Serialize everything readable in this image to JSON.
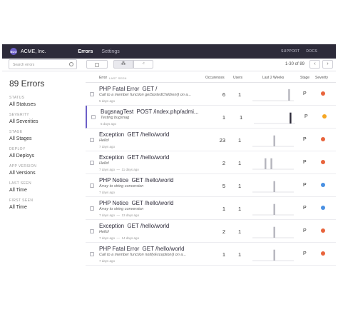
{
  "app": {
    "org_name": "ACME, Inc.",
    "logo_text": "BUG",
    "nav_tabs": [
      "Errors",
      "Settings"
    ],
    "top_links": [
      "SUPPORT",
      "DOCS"
    ]
  },
  "toolbar": {
    "search_placeholder": "Search errors",
    "group_icon_1": "⁂",
    "group_icon_2": "⁖",
    "page_range": "1-30 of 89",
    "prev_label": "‹",
    "next_label": "›"
  },
  "sidebar": {
    "title": "89 Errors",
    "filters": [
      {
        "label": "STATUS",
        "value": "All Statuses"
      },
      {
        "label": "SEVERITY",
        "value": "All Severities"
      },
      {
        "label": "STAGE",
        "value": "All Stages"
      },
      {
        "label": "DEPLOY",
        "value": "All Deploys"
      },
      {
        "label": "APP VERSION",
        "value": "All Versions"
      },
      {
        "label": "LAST SEEN",
        "value": "All Time"
      },
      {
        "label": "FIRST SEEN",
        "value": "All Time"
      }
    ]
  },
  "columns": {
    "error": "Error",
    "sort": "LAST SEEN",
    "occurrences": "Occurences",
    "users": "Users",
    "trend": "Last 2 Weeks",
    "stage": "Stage",
    "severity": "Severity"
  },
  "severity_colors": {
    "error": "#e8643c",
    "warning": "#f5a623",
    "info": "#4a90e2"
  },
  "errors": [
    {
      "class": "PHP Fatal Error",
      "route": "GET /",
      "message": "Call to a member function getSortedChildren() on a...",
      "first_seen": "5 days ago",
      "last_seen": "",
      "occurrences": "6",
      "users": "1",
      "stage": "P",
      "severity": "error",
      "trend": [
        0,
        0,
        0,
        0,
        0,
        0,
        0,
        0,
        0,
        0,
        0,
        0,
        0.95,
        0
      ],
      "selected": false
    },
    {
      "class": "BugsnagTest",
      "route": "POST /index.php/admi...",
      "message": "Testing bugsnag",
      "first_seen": "5 days ago",
      "last_seen": "",
      "occurrences": "1",
      "users": "1",
      "stage": "P",
      "severity": "warning",
      "trend": [
        0,
        0,
        0,
        0,
        0,
        0,
        0,
        0,
        0,
        0,
        0,
        0,
        0.9,
        0
      ],
      "selected": true
    },
    {
      "class": "Exception",
      "route": "GET /hello/world",
      "message": "Hello!",
      "first_seen": "7 days ago",
      "last_seen": "",
      "occurrences": "23",
      "users": "1",
      "stage": "P",
      "severity": "error",
      "trend": [
        0,
        0,
        0,
        0,
        0,
        0,
        0,
        0.9,
        0,
        0,
        0,
        0,
        0,
        0
      ],
      "selected": false
    },
    {
      "class": "Exception",
      "route": "GET /hello/world",
      "message": "Hello!",
      "first_seen": "7 days ago",
      "last_seen": "11 days ago",
      "occurrences": "2",
      "users": "1",
      "stage": "P",
      "severity": "error",
      "trend": [
        0,
        0,
        0,
        0,
        0.9,
        0,
        0.9,
        0,
        0,
        0,
        0,
        0,
        0,
        0
      ],
      "selected": false
    },
    {
      "class": "PHP Notice",
      "route": "GET /hello/world",
      "message": "Array to string conversion",
      "first_seen": "7 days ago",
      "last_seen": "",
      "occurrences": "5",
      "users": "1",
      "stage": "P",
      "severity": "info",
      "trend": [
        0,
        0,
        0,
        0,
        0,
        0,
        0,
        0.9,
        0,
        0,
        0,
        0,
        0,
        0
      ],
      "selected": false
    },
    {
      "class": "PHP Notice",
      "route": "GET /hello/world",
      "message": "Array to string conversion",
      "first_seen": "7 days ago",
      "last_seen": "13 days ago",
      "occurrences": "1",
      "users": "1",
      "stage": "P",
      "severity": "info",
      "trend": [
        0,
        0,
        0,
        0,
        0,
        0,
        0,
        0.9,
        0,
        0,
        0,
        0,
        0,
        0
      ],
      "selected": false
    },
    {
      "class": "Exception",
      "route": "GET /hello/world",
      "message": "Hello!",
      "first_seen": "7 days ago",
      "last_seen": "14 days ago",
      "occurrences": "2",
      "users": "1",
      "stage": "P",
      "severity": "error",
      "trend": [
        0,
        0,
        0,
        0,
        0,
        0,
        0,
        0.9,
        0,
        0,
        0,
        0,
        0,
        0
      ],
      "selected": false
    },
    {
      "class": "PHP Fatal Error",
      "route": "GET /hello/world",
      "message": "Call to a member function notifyException() on a...",
      "first_seen": "7 days ago",
      "last_seen": "",
      "occurrences": "1",
      "users": "1",
      "stage": "P",
      "severity": "error",
      "trend": [
        0,
        0,
        0,
        0,
        0,
        0,
        0,
        0.9,
        0,
        0,
        0,
        0,
        0,
        0
      ],
      "selected": false
    }
  ]
}
